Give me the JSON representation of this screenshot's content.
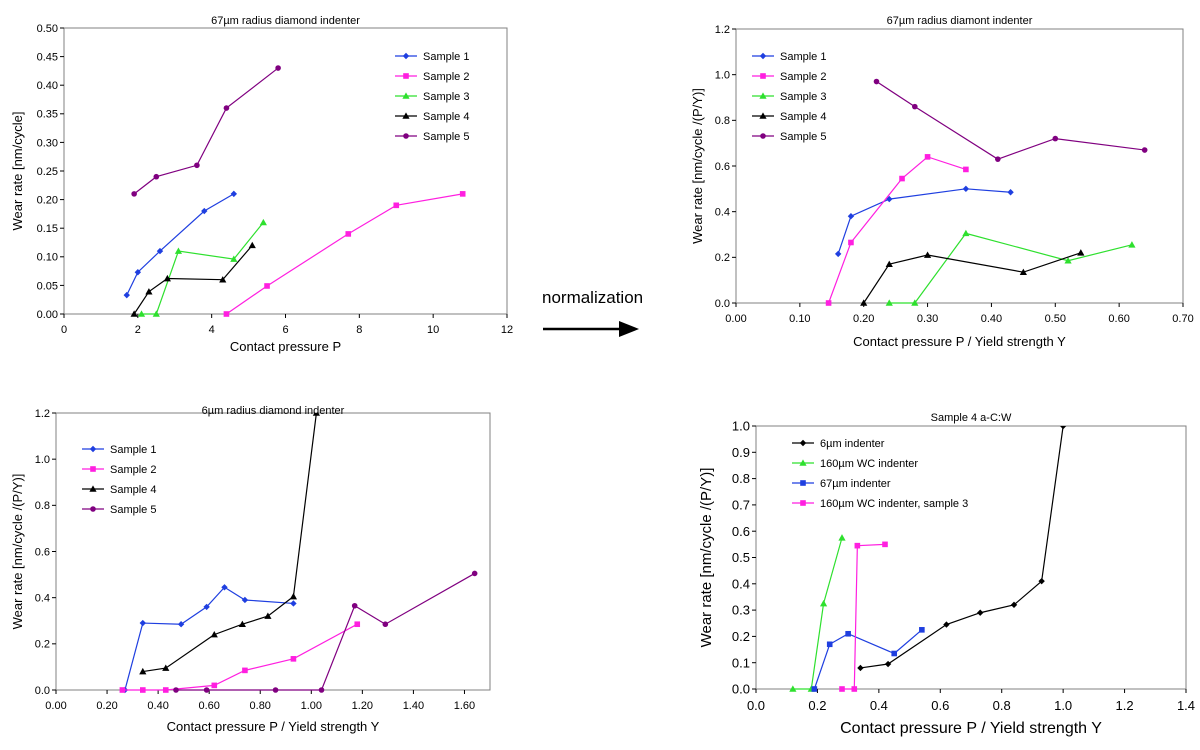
{
  "annotation": {
    "label": "normalization"
  },
  "chart_data": [
    {
      "type": "line",
      "title": "67µm radius diamond indenter",
      "xlabel": "Contact pressure P",
      "ylabel": "Wear rate [nm/cycle]",
      "xlim": [
        0,
        12
      ],
      "ylim": [
        0,
        0.5
      ],
      "xticks": [
        0,
        2,
        4,
        6,
        8,
        10,
        12
      ],
      "xtick_labels": [
        "0",
        "2",
        "4",
        "6",
        "8",
        "10",
        "12"
      ],
      "yticks": [
        0,
        0.05,
        0.1,
        0.15,
        0.2,
        0.25,
        0.3,
        0.35,
        0.4,
        0.45,
        0.5
      ],
      "ytick_labels": [
        "0.00",
        "0.05",
        "0.10",
        "0.15",
        "0.20",
        "0.25",
        "0.30",
        "0.35",
        "0.40",
        "0.45",
        "0.50"
      ],
      "legend_position": "top-right",
      "series": [
        {
          "name": "Sample 1",
          "color": "#1f3fe0",
          "marker": "diamond",
          "points": [
            [
              1.7,
              0.033
            ],
            [
              2.0,
              0.073
            ],
            [
              2.6,
              0.11
            ],
            [
              3.8,
              0.18
            ],
            [
              4.6,
              0.21
            ]
          ]
        },
        {
          "name": "Sample 2",
          "color": "#ff1fe0",
          "marker": "square",
          "points": [
            [
              4.4,
              0.0
            ],
            [
              5.5,
              0.049
            ],
            [
              7.7,
              0.14
            ],
            [
              9.0,
              0.19
            ],
            [
              10.8,
              0.21
            ]
          ]
        },
        {
          "name": "Sample 3",
          "color": "#2ee02e",
          "marker": "triangle",
          "points": [
            [
              2.1,
              0.0
            ],
            [
              2.5,
              0.0
            ],
            [
              3.1,
              0.11
            ],
            [
              4.6,
              0.096
            ],
            [
              5.4,
              0.16
            ]
          ]
        },
        {
          "name": "Sample 4",
          "color": "#000000",
          "marker": "triangle",
          "points": [
            [
              1.9,
              0.0
            ],
            [
              2.3,
              0.039
            ],
            [
              2.8,
              0.062
            ],
            [
              4.3,
              0.06
            ],
            [
              5.1,
              0.12
            ]
          ]
        },
        {
          "name": "Sample 5",
          "color": "#800080",
          "marker": "circle",
          "points": [
            [
              1.9,
              0.21
            ],
            [
              2.5,
              0.24
            ],
            [
              3.6,
              0.26
            ],
            [
              4.4,
              0.36
            ],
            [
              5.8,
              0.43
            ]
          ]
        }
      ]
    },
    {
      "type": "line",
      "title": "67µm radius diamont indenter",
      "xlabel": "Contact pressure P / Yield strength Y",
      "ylabel": "Wear rate [nm/cycle /(P/Y)]",
      "xlim": [
        0,
        0.7
      ],
      "ylim": [
        0,
        1.2
      ],
      "xticks": [
        0,
        0.1,
        0.2,
        0.3,
        0.4,
        0.5,
        0.6,
        0.7
      ],
      "xtick_labels": [
        "0.00",
        "0.10",
        "0.20",
        "0.30",
        "0.40",
        "0.50",
        "0.60",
        "0.70"
      ],
      "yticks": [
        0,
        0.2,
        0.4,
        0.6,
        0.8,
        1.0,
        1.2
      ],
      "ytick_labels": [
        "0.0",
        "0.2",
        "0.4",
        "0.6",
        "0.8",
        "1.0",
        "1.2"
      ],
      "legend_position": "top-left",
      "series": [
        {
          "name": "Sample 1",
          "color": "#1f3fe0",
          "marker": "diamond",
          "points": [
            [
              0.16,
              0.215
            ],
            [
              0.18,
              0.38
            ],
            [
              0.24,
              0.455
            ],
            [
              0.36,
              0.5
            ],
            [
              0.43,
              0.485
            ]
          ]
        },
        {
          "name": "Sample 2",
          "color": "#ff1fe0",
          "marker": "square",
          "points": [
            [
              0.145,
              0.0
            ],
            [
              0.18,
              0.265
            ],
            [
              0.26,
              0.545
            ],
            [
              0.3,
              0.64
            ],
            [
              0.36,
              0.585
            ]
          ]
        },
        {
          "name": "Sample 3",
          "color": "#2ee02e",
          "marker": "triangle",
          "points": [
            [
              0.24,
              0.0
            ],
            [
              0.28,
              0.0
            ],
            [
              0.36,
              0.305
            ],
            [
              0.52,
              0.185
            ],
            [
              0.62,
              0.255
            ]
          ]
        },
        {
          "name": "Sample 4",
          "color": "#000000",
          "marker": "triangle",
          "points": [
            [
              0.2,
              0.0
            ],
            [
              0.24,
              0.17
            ],
            [
              0.3,
              0.21
            ],
            [
              0.45,
              0.135
            ],
            [
              0.54,
              0.22
            ]
          ]
        },
        {
          "name": "Sample 5",
          "color": "#800080",
          "marker": "circle",
          "points": [
            [
              0.22,
              0.97
            ],
            [
              0.28,
              0.86
            ],
            [
              0.41,
              0.63
            ],
            [
              0.5,
              0.72
            ],
            [
              0.64,
              0.67
            ]
          ]
        }
      ]
    },
    {
      "type": "line",
      "title": "6µm radius diamond indenter",
      "xlabel": "Contact pressure P / Yield strength Y",
      "ylabel": "Wear rate [nm/cycle /(P/Y)]",
      "xlim": [
        0,
        1.7
      ],
      "ylim": [
        0,
        1.2
      ],
      "xticks": [
        0,
        0.2,
        0.4,
        0.6,
        0.8,
        1.0,
        1.2,
        1.4,
        1.6
      ],
      "xtick_labels": [
        "0.00",
        "0.20",
        "0.40",
        "0.60",
        "0.80",
        "1.00",
        "1.20",
        "1.40",
        "1.60"
      ],
      "yticks": [
        0,
        0.2,
        0.4,
        0.6,
        0.8,
        1.0,
        1.2
      ],
      "ytick_labels": [
        "0.0",
        "0.2",
        "0.4",
        "0.6",
        "0.8",
        "1.0",
        "1.2"
      ],
      "legend_position": "top-left",
      "series": [
        {
          "name": "Sample 1",
          "color": "#1f3fe0",
          "marker": "diamond",
          "points": [
            [
              0.27,
              0.0
            ],
            [
              0.34,
              0.29
            ],
            [
              0.49,
              0.285
            ],
            [
              0.59,
              0.36
            ],
            [
              0.66,
              0.445
            ],
            [
              0.74,
              0.39
            ],
            [
              0.93,
              0.375
            ]
          ]
        },
        {
          "name": "Sample 2",
          "color": "#ff1fe0",
          "marker": "square",
          "points": [
            [
              0.26,
              0.0
            ],
            [
              0.34,
              0.0
            ],
            [
              0.43,
              0.0
            ],
            [
              0.62,
              0.02
            ],
            [
              0.74,
              0.085
            ],
            [
              0.93,
              0.135
            ],
            [
              1.18,
              0.285
            ]
          ]
        },
        {
          "name": "Sample 4",
          "color": "#000000",
          "marker": "triangle",
          "points": [
            [
              0.34,
              0.08
            ],
            [
              0.43,
              0.095
            ],
            [
              0.62,
              0.24
            ],
            [
              0.73,
              0.285
            ],
            [
              0.83,
              0.32
            ],
            [
              0.93,
              0.405
            ],
            [
              1.02,
              1.2
            ]
          ]
        },
        {
          "name": "Sample 5",
          "color": "#800080",
          "marker": "circle",
          "points": [
            [
              0.47,
              0.0
            ],
            [
              0.59,
              0.0
            ],
            [
              0.86,
              0.0
            ],
            [
              1.04,
              0.0
            ],
            [
              1.17,
              0.365
            ],
            [
              1.29,
              0.285
            ],
            [
              1.64,
              0.505
            ]
          ]
        }
      ]
    },
    {
      "type": "line",
      "title": "Sample 4 a-C:W",
      "xlabel": "Contact pressure P / Yield strength Y",
      "ylabel": "Wear rate [nm/cycle /(P/Y)]",
      "xlim": [
        0,
        1.4
      ],
      "ylim": [
        0,
        1.0
      ],
      "xticks": [
        0,
        0.2,
        0.4,
        0.6,
        0.8,
        1.0,
        1.2,
        1.4
      ],
      "xtick_labels": [
        "0.0",
        "0.2",
        "0.4",
        "0.6",
        "0.8",
        "1.0",
        "1.2",
        "1.4"
      ],
      "yticks": [
        0,
        0.1,
        0.2,
        0.3,
        0.4,
        0.5,
        0.6,
        0.7,
        0.8,
        0.9,
        1.0
      ],
      "ytick_labels": [
        "0.0",
        "0.1",
        "0.2",
        "0.3",
        "0.4",
        "0.5",
        "0.6",
        "0.7",
        "0.8",
        "0.9",
        "1.0"
      ],
      "legend_position": "top-left",
      "series": [
        {
          "name": "6µm indenter",
          "color": "#000000",
          "marker": "diamond",
          "points": [
            [
              0.34,
              0.08
            ],
            [
              0.43,
              0.095
            ],
            [
              0.62,
              0.245
            ],
            [
              0.73,
              0.29
            ],
            [
              0.84,
              0.32
            ],
            [
              0.93,
              0.41
            ],
            [
              1.0,
              1.0
            ]
          ]
        },
        {
          "name": "160µm WC indenter",
          "color": "#2ee02e",
          "marker": "triangle",
          "points": [
            [
              0.12,
              0.0
            ],
            [
              0.18,
              0.0
            ],
            [
              0.22,
              0.325
            ],
            [
              0.28,
              0.575
            ]
          ]
        },
        {
          "name": "67µm indenter",
          "color": "#1f3fe0",
          "marker": "square",
          "points": [
            [
              0.19,
              0.0
            ],
            [
              0.24,
              0.17
            ],
            [
              0.3,
              0.21
            ],
            [
              0.45,
              0.135
            ],
            [
              0.54,
              0.225
            ]
          ]
        },
        {
          "name": "160µm WC indenter, sample 3",
          "color": "#ff1fe0",
          "marker": "square",
          "points": [
            [
              0.28,
              0.0
            ],
            [
              0.32,
              0.0
            ],
            [
              0.33,
              0.545
            ],
            [
              0.42,
              0.55
            ]
          ]
        }
      ]
    }
  ]
}
